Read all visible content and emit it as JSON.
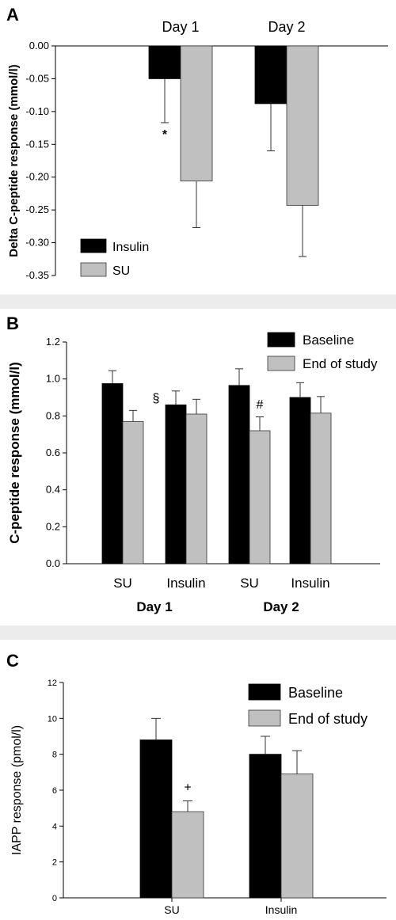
{
  "chart_data": [
    {
      "panel": "A",
      "type": "bar",
      "categories": [
        "Day 1",
        "Day 2"
      ],
      "series": [
        {
          "name": "Insulin",
          "values": [
            -0.05,
            -0.088
          ],
          "errors": [
            0.067,
            0.072
          ],
          "color": "#000000"
        },
        {
          "name": "SU",
          "values": [
            -0.206,
            -0.243
          ],
          "errors": [
            0.071,
            0.078
          ],
          "color": "#c0c0c0"
        }
      ],
      "ylabel": "Delta C-peptide response (mmol/l)",
      "ylim": [
        -0.35,
        0
      ],
      "yticks": [
        "0.00",
        "-0.05",
        "-0.10",
        "-0.15",
        "-0.20",
        "-0.25",
        "-0.30",
        "-0.35"
      ],
      "annotations": [
        {
          "text": "*",
          "category": "Day 1",
          "series": "Insulin"
        }
      ],
      "legend": "bottom-left"
    },
    {
      "panel": "B",
      "type": "bar",
      "categories": [
        "SU",
        "Insulin",
        "SU",
        "Insulin"
      ],
      "groups": [
        "Day 1",
        "Day 2"
      ],
      "series": [
        {
          "name": "Baseline",
          "values": [
            0.975,
            0.86,
            0.965,
            0.9
          ],
          "errors": [
            0.07,
            0.075,
            0.09,
            0.08
          ],
          "color": "#000000"
        },
        {
          "name": "End of study",
          "values": [
            0.77,
            0.81,
            0.72,
            0.815
          ],
          "errors": [
            0.06,
            0.08,
            0.075,
            0.09
          ],
          "color": "#c0c0c0"
        }
      ],
      "ylabel": "C-peptide response (mmol/l)",
      "ylim": [
        0,
        1.2
      ],
      "yticks": [
        "0.0",
        "0.2",
        "0.4",
        "0.6",
        "0.8",
        "1.0",
        "1.2"
      ],
      "annotations": [
        {
          "text": "§",
          "category_index": 0,
          "series": "End of study"
        },
        {
          "text": "#",
          "category_index": 2,
          "series": "End of study"
        }
      ],
      "legend": "top-right"
    },
    {
      "panel": "C",
      "type": "bar",
      "categories": [
        "SU",
        "Insulin"
      ],
      "series": [
        {
          "name": "Baseline",
          "values": [
            8.8,
            8.0
          ],
          "errors": [
            1.2,
            1.0
          ],
          "color": "#000000"
        },
        {
          "name": "End of study",
          "values": [
            4.8,
            6.9
          ],
          "errors": [
            0.6,
            1.3
          ],
          "color": "#c0c0c0"
        }
      ],
      "ylabel": "IAPP response (pmol/l)",
      "ylim": [
        0,
        12
      ],
      "yticks": [
        "0",
        "2",
        "4",
        "6",
        "8",
        "10",
        "12"
      ],
      "annotations": [
        {
          "text": "+",
          "category_index": 0,
          "series": "End of study"
        }
      ],
      "legend": "top-right"
    }
  ]
}
